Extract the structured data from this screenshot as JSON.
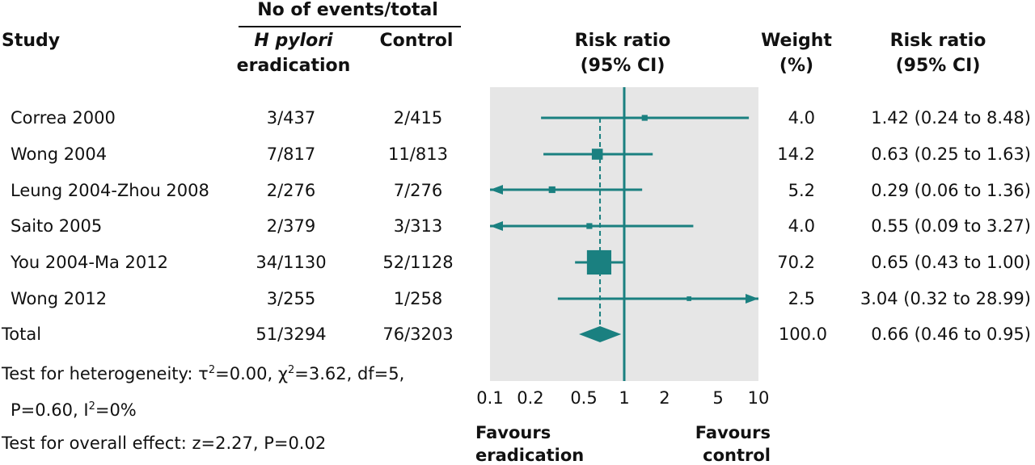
{
  "header": {
    "events_group": "No of events/total",
    "study": "Study",
    "treatment_line1": "H pylori",
    "treatment_line2": "eradication",
    "control": "Control",
    "rr_plot_line1": "Risk ratio",
    "rr_plot_line2": "(95% CI)",
    "weight_line1": "Weight",
    "weight_line2": "(%)",
    "rr_text_line1": "Risk ratio",
    "rr_text_line2": "(95% CI)"
  },
  "rows": [
    {
      "study": "Correa 2000",
      "treatment": "3/437",
      "control": "2/415",
      "weight": "4.0",
      "ci_text": "1.42 (0.24 to 8.48)"
    },
    {
      "study": "Wong 2004",
      "treatment": "7/817",
      "control": "11/813",
      "weight": "14.2",
      "ci_text": "0.63 (0.25 to 1.63)"
    },
    {
      "study": "Leung 2004-Zhou 2008",
      "treatment": "2/276",
      "control": "7/276",
      "weight": "5.2",
      "ci_text": "0.29 (0.06 to 1.36)"
    },
    {
      "study": "Saito 2005",
      "treatment": "2/379",
      "control": "3/313",
      "weight": "4.0",
      "ci_text": "0.55 (0.09 to 3.27)"
    },
    {
      "study": "You 2004-Ma 2012",
      "treatment": "34/1130",
      "control": "52/1128",
      "weight": "70.2",
      "ci_text": "0.65 (0.43 to 1.00)"
    },
    {
      "study": "Wong 2012",
      "treatment": "3/255",
      "control": "1/258",
      "weight": "2.5",
      "ci_text": "3.04 (0.32 to 28.99)"
    }
  ],
  "total": {
    "label": "Total",
    "treatment": "51/3294",
    "control": "76/3203",
    "weight": "100.0",
    "ci_text": "0.66 (0.46 to 0.95)"
  },
  "footer": {
    "heterogeneity_prefix": "Test for heterogeneity: τ",
    "heterogeneity_tau_val": "=0.00, χ",
    "heterogeneity_chi_val": "=3.62, df=5,",
    "superscript": "2",
    "heterogeneity_line2_prefix": "P=0.60, I",
    "heterogeneity_line2_suffix": "=0%",
    "overall_effect": "Test for overall effect: z=2.27, P=0.02"
  },
  "axis": {
    "favours_left_line1": "Favours",
    "favours_left_line2": "eradication",
    "favours_right_line1": "Favours",
    "favours_right_line2": "control"
  },
  "colors": {
    "mark": "#1a8080",
    "panel": "#e6e6e6",
    "ink": "#111111"
  },
  "chart_data": {
    "type": "forest",
    "scale": "log",
    "xlim": [
      0.1,
      10
    ],
    "x_ticks": [
      0.1,
      0.2,
      0.5,
      1,
      2,
      5,
      10
    ],
    "x_tick_labels": [
      "0.1",
      "0.2",
      "0.5",
      "1",
      "2",
      "5",
      "10"
    ],
    "reference_line": 1,
    "pooled_line": 0.66,
    "studies": [
      {
        "name": "Correa 2000",
        "rr": 1.42,
        "lo": 0.24,
        "hi": 8.48,
        "weight": 4.0
      },
      {
        "name": "Wong 2004",
        "rr": 0.63,
        "lo": 0.25,
        "hi": 1.63,
        "weight": 14.2
      },
      {
        "name": "Leung 2004-Zhou 2008",
        "rr": 0.29,
        "lo": 0.06,
        "hi": 1.36,
        "weight": 5.2
      },
      {
        "name": "Saito 2005",
        "rr": 0.55,
        "lo": 0.09,
        "hi": 3.27,
        "weight": 4.0
      },
      {
        "name": "You 2004-Ma 2012",
        "rr": 0.65,
        "lo": 0.43,
        "hi": 1.0,
        "weight": 70.2
      },
      {
        "name": "Wong 2012",
        "rr": 3.04,
        "lo": 0.32,
        "hi": 28.99,
        "weight": 2.5
      }
    ],
    "pooled": {
      "rr": 0.66,
      "lo": 0.46,
      "hi": 0.95
    }
  }
}
